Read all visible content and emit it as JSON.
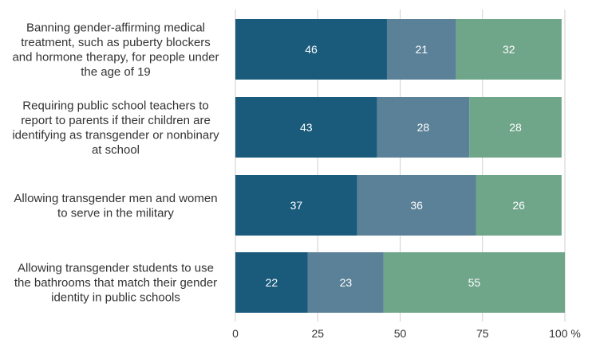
{
  "chart_data": {
    "type": "bar",
    "orientation": "horizontal",
    "stacked": true,
    "categories": [
      [
        "Banning gender-affirming medical",
        "treatment, such as puberty blockers",
        "and hormone therapy, for people under",
        "the age of 19"
      ],
      [
        "Requiring public school teachers to",
        "report to parents if their children are",
        "identifying as transgender or nonbinary",
        "at school"
      ],
      [
        "Allowing transgender men and women",
        "to serve in the military"
      ],
      [
        "Allowing transgender students to use",
        "the bathrooms that match their gender",
        "identity in public schools"
      ]
    ],
    "series": [
      {
        "color": "#1a5b7c",
        "values": [
          46,
          43,
          37,
          22
        ]
      },
      {
        "color": "#5b8198",
        "values": [
          21,
          28,
          36,
          23
        ]
      },
      {
        "color": "#6fa589",
        "values": [
          32,
          28,
          26,
          55
        ]
      }
    ],
    "xlim": [
      0,
      100
    ],
    "xticks": [
      "0",
      "25",
      "50",
      "75",
      "100 %"
    ],
    "grid": true
  }
}
